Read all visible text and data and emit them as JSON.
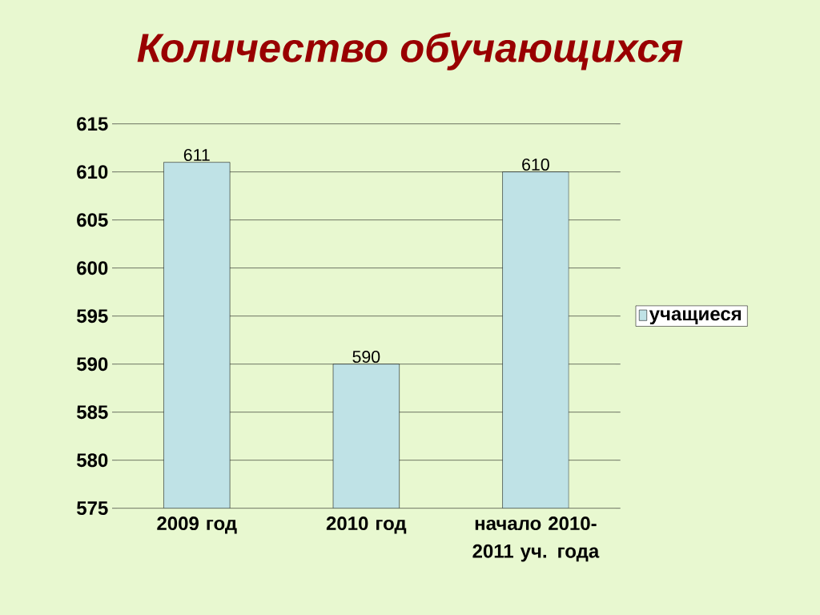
{
  "chart_data": {
    "type": "bar",
    "title": "Количество обучающихся",
    "categories": [
      "2009 год",
      "2010 год",
      "начало 2010-2011 уч. года"
    ],
    "series": [
      {
        "name": "учащиеся",
        "color": "#bfe2e6",
        "values": [
          611,
          590,
          610
        ]
      }
    ],
    "ylim": [
      575,
      615
    ],
    "yticks": [
      575,
      580,
      585,
      590,
      595,
      600,
      605,
      610,
      615
    ],
    "grid": "y",
    "legend": "right",
    "data_labels": true
  }
}
